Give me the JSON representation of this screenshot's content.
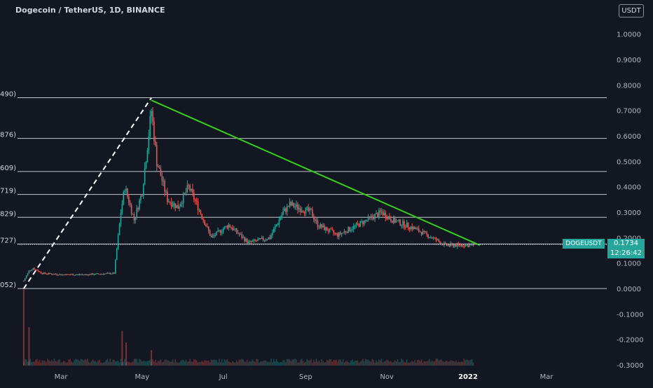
{
  "header": {
    "title": "Dogecoin / TetherUS, 1D, BINANCE",
    "currency": "USDT"
  },
  "colors": {
    "background": "#131722",
    "up": "#26a69a",
    "down": "#ef5350",
    "fib_lines": "#e0e3eb",
    "trendline": "#34d11a",
    "dashed_line": "#ffffff"
  },
  "price_label": {
    "symbol": "DOGEUSDT",
    "price": "0.1734",
    "countdown": "12:26:42"
  },
  "chart_data": {
    "type": "candlestick",
    "title": "Dogecoin / TetherUS, 1D, BINANCE",
    "x_tick_labels": [
      "Mar",
      "May",
      "Jul",
      "Sep",
      "Nov",
      "2022",
      "Mar"
    ],
    "y_tick_labels": [
      "1.0000",
      "0.9000",
      "0.8000",
      "0.7000",
      "0.6000",
      "0.5000",
      "0.4000",
      "0.3000",
      "0.2000",
      "0.1000",
      "0.0000",
      "-0.1000",
      "-0.2000",
      "-0.3000"
    ],
    "ylim": [
      -0.3,
      1.08
    ],
    "fib_levels": [
      {
        "label": "490)",
        "value": 0.75
      },
      {
        "label": "876)",
        "value": 0.59
      },
      {
        "label": "609)",
        "value": 0.46
      },
      {
        "label": "719)",
        "value": 0.37
      },
      {
        "label": "829)",
        "value": 0.28
      },
      {
        "label": "727)",
        "value": 0.175
      },
      {
        "label": "052)",
        "value": 0.0
      }
    ],
    "current_price": 0.1734,
    "trendline": {
      "from": {
        "date": "2021-05-08",
        "price": 0.74
      },
      "to": {
        "date": "2022-01-10",
        "price": 0.17
      }
    },
    "dashed_line": {
      "from": {
        "date": "2021-02-01",
        "price": 0.0
      },
      "to": {
        "date": "2021-05-08",
        "price": 0.75
      }
    },
    "price_path": [
      {
        "date": "2021-02-01",
        "price": 0.03
      },
      {
        "date": "2021-02-05",
        "price": 0.07
      },
      {
        "date": "2021-02-08",
        "price": 0.08
      },
      {
        "date": "2021-02-15",
        "price": 0.06
      },
      {
        "date": "2021-03-01",
        "price": 0.055
      },
      {
        "date": "2021-03-20",
        "price": 0.055
      },
      {
        "date": "2021-04-10",
        "price": 0.06
      },
      {
        "date": "2021-04-15",
        "price": 0.3
      },
      {
        "date": "2021-04-18",
        "price": 0.4
      },
      {
        "date": "2021-04-25",
        "price": 0.27
      },
      {
        "date": "2021-05-01",
        "price": 0.38
      },
      {
        "date": "2021-05-08",
        "price": 0.7
      },
      {
        "date": "2021-05-12",
        "price": 0.5
      },
      {
        "date": "2021-05-20",
        "price": 0.35
      },
      {
        "date": "2021-05-28",
        "price": 0.32
      },
      {
        "date": "2021-06-05",
        "price": 0.4
      },
      {
        "date": "2021-06-12",
        "price": 0.32
      },
      {
        "date": "2021-06-22",
        "price": 0.2
      },
      {
        "date": "2021-07-05",
        "price": 0.25
      },
      {
        "date": "2021-07-20",
        "price": 0.18
      },
      {
        "date": "2021-08-05",
        "price": 0.2
      },
      {
        "date": "2021-08-15",
        "price": 0.3
      },
      {
        "date": "2021-08-20",
        "price": 0.33
      },
      {
        "date": "2021-09-05",
        "price": 0.3
      },
      {
        "date": "2021-09-10",
        "price": 0.25
      },
      {
        "date": "2021-09-25",
        "price": 0.21
      },
      {
        "date": "2021-10-10",
        "price": 0.25
      },
      {
        "date": "2021-10-28",
        "price": 0.3
      },
      {
        "date": "2021-11-05",
        "price": 0.27
      },
      {
        "date": "2021-11-20",
        "price": 0.24
      },
      {
        "date": "2021-12-05",
        "price": 0.2
      },
      {
        "date": "2021-12-15",
        "price": 0.17
      },
      {
        "date": "2022-01-05",
        "price": 0.17
      }
    ],
    "volume_spikes": [
      {
        "date": "2021-02-01",
        "volume": 1.0
      },
      {
        "date": "2021-02-05",
        "volume": 0.5
      },
      {
        "date": "2021-04-16",
        "volume": 0.45
      },
      {
        "date": "2021-04-19",
        "volume": 0.3
      },
      {
        "date": "2021-05-08",
        "volume": 0.2
      }
    ],
    "grid": false
  }
}
